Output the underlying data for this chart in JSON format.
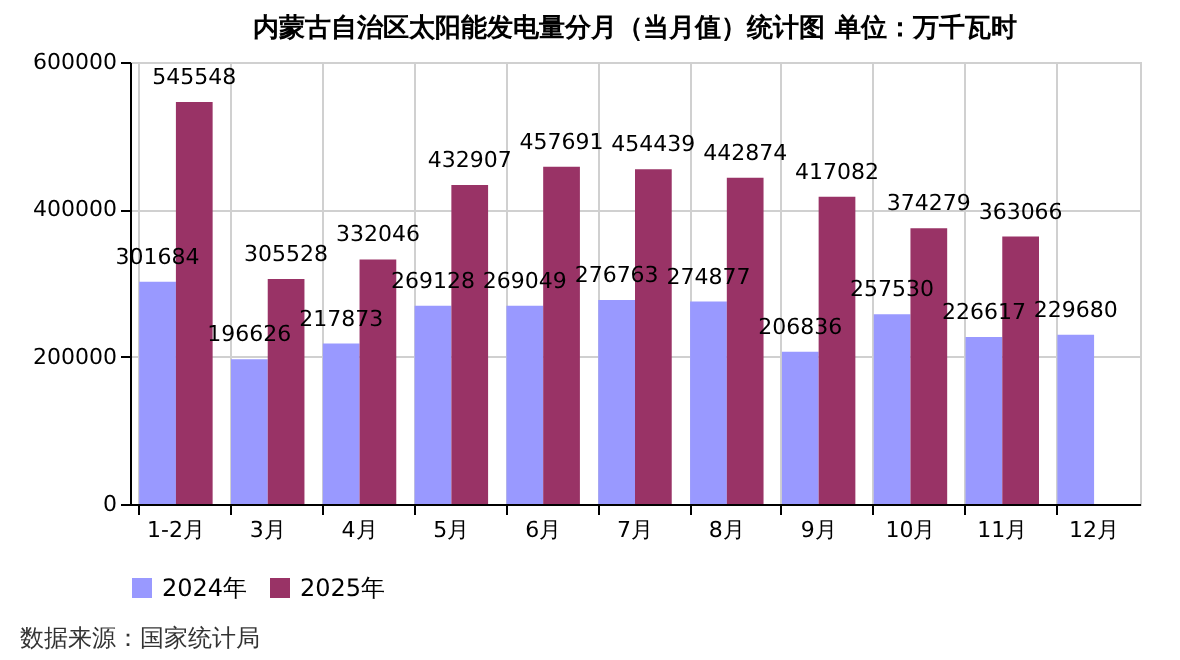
{
  "chart_data": {
    "type": "bar",
    "title": "内蒙古自治区太阳能发电量分月（当月值）统计图 单位：万千瓦时",
    "categories": [
      "1-2月",
      "3月",
      "4月",
      "5月",
      "6月",
      "7月",
      "8月",
      "9月",
      "10月",
      "11月",
      "12月"
    ],
    "series": [
      {
        "name": "2024年",
        "color": "#9999ff",
        "values": [
          301684,
          196626,
          217873,
          269128,
          269049,
          276763,
          274877,
          206836,
          257530,
          226617,
          229680
        ]
      },
      {
        "name": "2025年",
        "color": "#993366",
        "values": [
          545548,
          305528,
          332046,
          432907,
          457691,
          454439,
          442874,
          417082,
          374279,
          363066,
          null
        ]
      }
    ],
    "ylim": [
      0,
      600000
    ],
    "yticks": [
      0,
      200000,
      400000,
      600000
    ],
    "grid": true,
    "legend": "bottom",
    "data_labels": true,
    "annotations": [
      "数据来源：国家统计局"
    ]
  }
}
